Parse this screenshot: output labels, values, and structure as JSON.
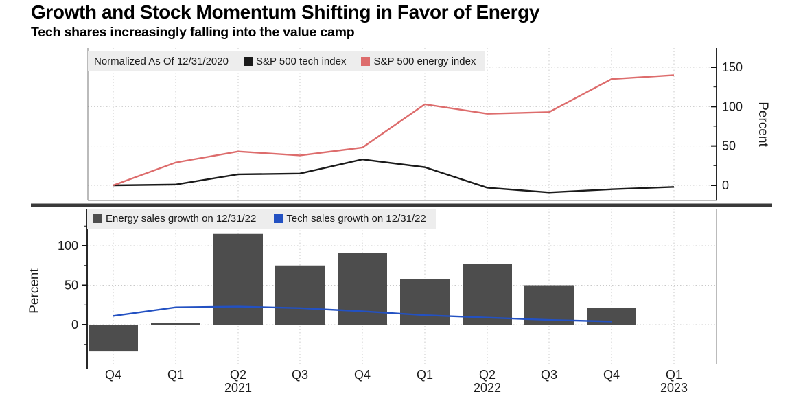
{
  "header": {
    "title": "Growth and Stock Momentum Shifting in Favor of Energy",
    "subtitle": "Tech shares increasingly falling into the value camp"
  },
  "colors": {
    "tech_line": "#1a1a1a",
    "energy_line": "#dd6c6c",
    "energy_bar": "#4d4d4d",
    "tech_sales_line": "#2351c2",
    "legend_bg": "#ededed",
    "divider": "#3a3a3a",
    "grid": "#c9c9c9",
    "axis_strong": "#111111",
    "axis_light": "#777777",
    "text": "#1a1a1a"
  },
  "chart_data": [
    {
      "id": "index-panel",
      "type": "line",
      "note": "Normalized As Of 12/31/2020",
      "categories": [
        "Q4 2020",
        "Q1 2021",
        "Q2 2021",
        "Q3 2021",
        "Q4 2021",
        "Q1 2022",
        "Q2 2022",
        "Q3 2022",
        "Q4 2022",
        "Q1 2023"
      ],
      "series": [
        {
          "name": "S&P 500 tech index",
          "color_key": "tech_line",
          "values": [
            0,
            1,
            14,
            15,
            33,
            23,
            -3,
            -9,
            -5,
            -2
          ]
        },
        {
          "name": "S&P 500 energy index",
          "color_key": "energy_line",
          "values": [
            0,
            29,
            43,
            38,
            48,
            103,
            91,
            93,
            135,
            140
          ]
        }
      ],
      "ylabel": "Percent",
      "yticks": [
        0,
        50,
        100,
        150
      ],
      "yticks_minor": [
        25,
        75,
        125
      ],
      "ygrid": [
        0,
        50,
        100,
        150
      ],
      "ylim": [
        -19,
        174
      ],
      "axis_side": "right",
      "grid": true,
      "legend_position": "top-left"
    },
    {
      "id": "sales-panel",
      "type": "bar+line",
      "categories": [
        "Q4 2020",
        "Q1 2021",
        "Q2 2021",
        "Q3 2021",
        "Q4 2021",
        "Q1 2022",
        "Q2 2022",
        "Q3 2022",
        "Q4 2022",
        "Q1 2023"
      ],
      "series": [
        {
          "name": "Energy sales growth on 12/31/22",
          "type": "bar",
          "color_key": "energy_bar",
          "values": [
            -34,
            2,
            115,
            75,
            91,
            58,
            77,
            50,
            21,
            null
          ]
        },
        {
          "name": "Tech sales growth on 12/31/22",
          "type": "line",
          "color_key": "tech_sales_line",
          "values": [
            11,
            22,
            23,
            21,
            17,
            12,
            9,
            6,
            4,
            null
          ]
        }
      ],
      "ylabel": "Percent",
      "yticks": [
        0,
        50,
        100
      ],
      "yticks_minor": [
        -50,
        -25,
        25,
        75,
        125
      ],
      "ygrid": [
        -50,
        0,
        50,
        100
      ],
      "ylim": [
        -50,
        147
      ],
      "axis_side": "left",
      "grid": true,
      "legend_position": "top-left",
      "x_tick_labels": [
        "Q4",
        "Q1",
        "Q2",
        "Q3",
        "Q4",
        "Q1",
        "Q2",
        "Q3",
        "Q4",
        "Q1"
      ],
      "year_labels": [
        {
          "text": "2021",
          "at_index": 2
        },
        {
          "text": "2022",
          "at_index": 6
        },
        {
          "text": "2023",
          "at_index": 9
        }
      ]
    }
  ]
}
